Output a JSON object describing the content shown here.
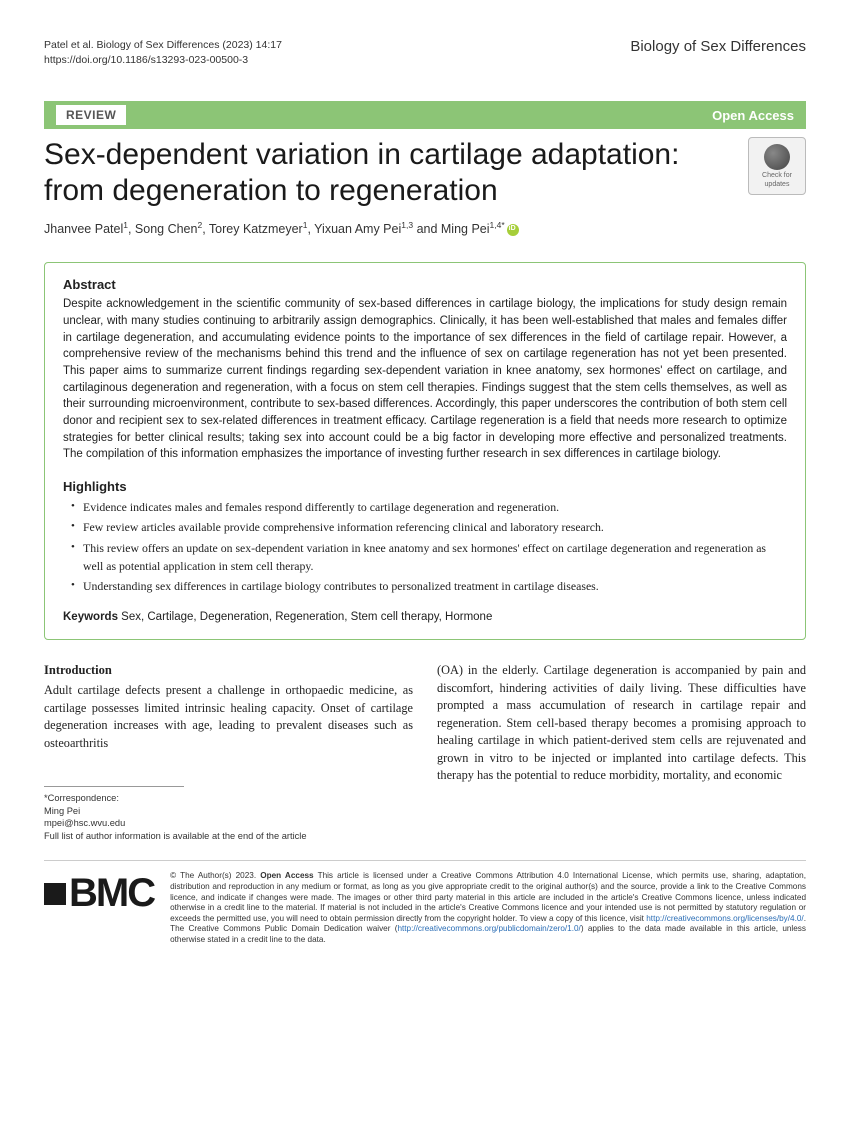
{
  "header": {
    "citation": "Patel et al. Biology of Sex Differences       (2023) 14:17",
    "doi": "https://doi.org/10.1186/s13293-023-00500-3",
    "journal": "Biology of Sex Differences"
  },
  "banner": {
    "type_label": "REVIEW",
    "access_label": "Open Access"
  },
  "title": "Sex-dependent variation in cartilage adaptation: from degeneration to regeneration",
  "update_badge": {
    "line1": "Check for",
    "line2": "updates"
  },
  "authors_html": "Jhanvee Patel<sup>1</sup>, Song Chen<sup>2</sup>, Torey Katzmeyer<sup>1</sup>, Yixuan Amy Pei<sup>1,3</sup> and Ming Pei<sup>1,4*</sup>",
  "abstract": {
    "heading": "Abstract",
    "text": "Despite acknowledgement in the scientific community of sex-based differences in cartilage biology, the implications for study design remain unclear, with many studies continuing to arbitrarily assign demographics. Clinically, it has been well-established that males and females differ in cartilage degeneration, and accumulating evidence points to the importance of sex differences in the field of cartilage repair. However, a comprehensive review of the mechanisms behind this trend and the influence of sex on cartilage regeneration has not yet been presented. This paper aims to summarize current findings regarding sex-dependent variation in knee anatomy, sex hormones' effect on cartilage, and cartilaginous degeneration and regeneration, with a focus on stem cell therapies. Findings suggest that the stem cells themselves, as well as their surrounding microenvironment, contribute to sex-based differences. Accordingly, this paper underscores the contribution of both stem cell donor and recipient sex to sex-related differences in treatment efficacy. Cartilage regeneration is a field that needs more research to optimize strategies for better clinical results; taking sex into account could be a big factor in developing more effective and personalized treatments. The compilation of this information emphasizes the importance of investing further research in sex differences in cartilage biology."
  },
  "highlights": {
    "heading": "Highlights",
    "items": [
      "Evidence indicates males and females respond differently to cartilage degeneration and regeneration.",
      "Few review articles available provide comprehensive information referencing clinical and laboratory research.",
      "This review offers an update on sex-dependent variation in knee anatomy and sex hormones' effect on cartilage degeneration and regeneration as well as potential application in stem cell therapy.",
      "Understanding sex differences in cartilage biology contributes to personalized treatment in cartilage diseases."
    ]
  },
  "keywords": {
    "label": "Keywords",
    "text": "Sex, Cartilage, Degeneration, Regeneration, Stem cell therapy, Hormone"
  },
  "intro": {
    "heading": "Introduction",
    "col1": "Adult cartilage defects present a challenge in orthopaedic medicine, as cartilage possesses limited intrinsic healing capacity. Onset of cartilage degeneration increases with age, leading to prevalent diseases such as osteoarthritis",
    "col2": "(OA) in the elderly. Cartilage degeneration is accompanied by pain and discomfort, hindering activities of daily living. These difficulties have prompted a mass accumulation of research in cartilage repair and regeneration. Stem cell-based therapy becomes a promising approach to healing cartilage in which patient-derived stem cells are rejuvenated and grown in vitro to be injected or implanted into cartilage defects. This therapy has the potential to reduce morbidity, mortality, and economic"
  },
  "correspondence": {
    "label": "*Correspondence:",
    "name": "Ming Pei",
    "email": "mpei@hsc.wvu.edu",
    "note": "Full list of author information is available at the end of the article"
  },
  "footer": {
    "logo": "BMC",
    "license": "© The Author(s) 2023. Open Access This article is licensed under a Creative Commons Attribution 4.0 International License, which permits use, sharing, adaptation, distribution and reproduction in any medium or format, as long as you give appropriate credit to the original author(s) and the source, provide a link to the Creative Commons licence, and indicate if changes were made. The images or other third party material in this article are included in the article's Creative Commons licence, unless indicated otherwise in a credit line to the material. If material is not included in the article's Creative Commons licence and your intended use is not permitted by statutory regulation or exceeds the permitted use, you will need to obtain permission directly from the copyright holder. To view a copy of this licence, visit http://creativecommons.org/licenses/by/4.0/. The Creative Commons Public Domain Dedication waiver (http://creativecommons.org/publicdomain/zero/1.0/) applies to the data made available in this article, unless otherwise stated in a credit line to the data.",
    "link1": "http://creativecommons.org/licenses/by/4.0/",
    "link2": "http://creativecommons.org/publicdomain/zero/1.0/"
  }
}
